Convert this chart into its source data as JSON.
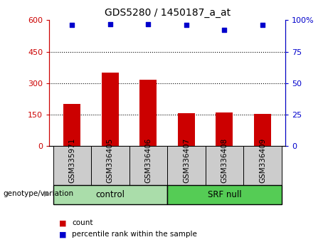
{
  "title": "GDS5280 / 1450187_a_at",
  "categories": [
    "GSM335971",
    "GSM336405",
    "GSM336406",
    "GSM336407",
    "GSM336408",
    "GSM336409"
  ],
  "bar_values": [
    200,
    350,
    315,
    158,
    160,
    152
  ],
  "percentile_values": [
    96,
    97,
    97,
    96,
    92,
    96
  ],
  "left_ylim": [
    0,
    600
  ],
  "right_ylim": [
    0,
    100
  ],
  "left_yticks": [
    0,
    150,
    300,
    450,
    600
  ],
  "right_yticks": [
    0,
    25,
    50,
    75,
    100
  ],
  "left_ytick_labels": [
    "0",
    "150",
    "300",
    "450",
    "600"
  ],
  "right_ytick_labels": [
    "0",
    "25",
    "50",
    "75",
    "100%"
  ],
  "bar_color": "#cc0000",
  "dot_color": "#0000cc",
  "control_label": "control",
  "srf_label": "SRF null",
  "genotype_label": "genotype/variation",
  "legend_count": "count",
  "legend_percentile": "percentile rank within the sample",
  "control_color": "#aaddaa",
  "srf_color": "#55cc55",
  "tick_area_color": "#cccccc",
  "grid_yticks": [
    150,
    300,
    450
  ],
  "dot_size": 25,
  "bar_width": 0.45
}
